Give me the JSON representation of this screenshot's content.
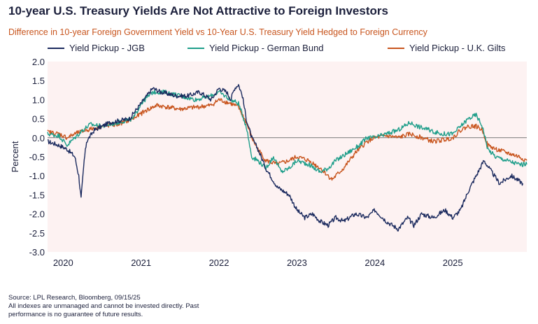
{
  "title": "10-year U.S. Treasury Yields Are Not Attractive to Foreign Investors",
  "subtitle": "Difference in 10-year Foreign Government Yield vs 10-Year U.S. Treasury Yield Hedged to Foreign Currency",
  "footer": {
    "source": "Source: LPL Research, Bloomberg, 09/15/25",
    "disclaimer_1": "All indexes are unmanaged and cannot be invested directly. Past",
    "disclaimer_2": "performance is no guarantee of future results."
  },
  "colors": {
    "jgb": "#1b2a5e",
    "bund": "#1e9e8a",
    "gilts": "#c8551e",
    "plot_bg": "#fdf2f2",
    "zero_line": "#777777"
  },
  "chart_data": {
    "type": "line",
    "title": "Difference in 10-year Foreign Government Yield vs 10-Year U.S. Treasury Yield Hedged to Foreign Currency",
    "ylabel": "Percent",
    "xlabel": "",
    "ylim": [
      -3.0,
      2.0
    ],
    "xlim": [
      2019.8,
      2025.95
    ],
    "y_ticks": [
      "2.0",
      "1.5",
      "1.0",
      "0.5",
      "0.0",
      "-0.5",
      "-1.0",
      "-1.5",
      "-2.0",
      "-2.5",
      "-3.0"
    ],
    "x_ticks": [
      "2020",
      "2021",
      "2022",
      "2023",
      "2024",
      "2025"
    ],
    "grid": false,
    "legend_position": "top",
    "series": [
      {
        "name": "Yield Pickup - JGB",
        "color": "#1b2a5e",
        "x": [
          2019.8,
          2019.95,
          2020.05,
          2020.15,
          2020.2,
          2020.23,
          2020.27,
          2020.3,
          2020.4,
          2020.6,
          2020.85,
          2021.0,
          2021.15,
          2021.25,
          2021.45,
          2021.6,
          2021.75,
          2021.9,
          2022.0,
          2022.1,
          2022.15,
          2022.2,
          2022.25,
          2022.3,
          2022.35,
          2022.42,
          2022.5,
          2022.6,
          2022.75,
          2022.9,
          2023.0,
          2023.1,
          2023.2,
          2023.3,
          2023.4,
          2023.5,
          2023.6,
          2023.75,
          2023.9,
          2024.0,
          2024.15,
          2024.3,
          2024.42,
          2024.5,
          2024.6,
          2024.75,
          2024.9,
          2025.0,
          2025.1,
          2025.2,
          2025.3,
          2025.4,
          2025.5,
          2025.6,
          2025.75,
          2025.9
        ],
        "y": [
          -0.1,
          -0.2,
          -0.3,
          -0.5,
          -1.0,
          -1.6,
          -0.6,
          -0.1,
          0.2,
          0.4,
          0.5,
          0.9,
          1.3,
          1.2,
          1.1,
          1.1,
          1.2,
          1.0,
          1.3,
          1.2,
          1.0,
          1.3,
          1.4,
          1.1,
          0.5,
          0.0,
          -0.3,
          -0.8,
          -1.3,
          -1.5,
          -1.9,
          -2.1,
          -2.0,
          -2.2,
          -2.3,
          -2.1,
          -2.2,
          -2.0,
          -2.1,
          -1.9,
          -2.2,
          -2.4,
          -2.1,
          -2.3,
          -2.0,
          -2.1,
          -1.9,
          -2.1,
          -1.9,
          -1.4,
          -1.0,
          -0.6,
          -0.9,
          -1.2,
          -1.0,
          -1.2
        ]
      },
      {
        "name": "Yield Pickup - German Bund",
        "color": "#1e9e8a",
        "x": [
          2019.8,
          2019.95,
          2020.05,
          2020.15,
          2020.25,
          2020.35,
          2020.5,
          2020.7,
          2020.9,
          2021.0,
          2021.15,
          2021.3,
          2021.5,
          2021.7,
          2021.9,
          2022.0,
          2022.15,
          2022.25,
          2022.35,
          2022.42,
          2022.5,
          2022.6,
          2022.7,
          2022.8,
          2022.9,
          2023.0,
          2023.15,
          2023.3,
          2023.4,
          2023.5,
          2023.65,
          2023.8,
          2023.9,
          2024.0,
          2024.15,
          2024.3,
          2024.45,
          2024.55,
          2024.7,
          2024.85,
          2025.0,
          2025.1,
          2025.2,
          2025.3,
          2025.38,
          2025.45,
          2025.55,
          2025.7,
          2025.85,
          2025.95
        ],
        "y": [
          0.1,
          0.05,
          -0.2,
          0.0,
          0.2,
          0.35,
          0.3,
          0.4,
          0.5,
          0.9,
          1.2,
          1.2,
          1.1,
          1.0,
          1.1,
          1.2,
          1.0,
          0.9,
          0.3,
          -0.5,
          -0.6,
          -0.8,
          -0.5,
          -0.9,
          -0.8,
          -0.6,
          -0.7,
          -0.9,
          -0.8,
          -0.6,
          -0.4,
          -0.2,
          0.0,
          0.0,
          0.1,
          0.2,
          0.4,
          0.3,
          0.2,
          0.1,
          0.1,
          0.3,
          0.5,
          0.6,
          0.3,
          -0.3,
          -0.5,
          -0.6,
          -0.7,
          -0.7
        ]
      },
      {
        "name": "Yield Pickup - U.K. Gilts",
        "color": "#c8551e",
        "x": [
          2019.8,
          2019.95,
          2020.05,
          2020.15,
          2020.3,
          2020.5,
          2020.7,
          2020.9,
          2021.05,
          2021.2,
          2021.35,
          2021.5,
          2021.7,
          2021.9,
          2022.0,
          2022.15,
          2022.25,
          2022.35,
          2022.42,
          2022.5,
          2022.6,
          2022.75,
          2022.9,
          2023.0,
          2023.15,
          2023.3,
          2023.45,
          2023.6,
          2023.75,
          2023.9,
          2024.0,
          2024.15,
          2024.3,
          2024.45,
          2024.6,
          2024.75,
          2024.9,
          2025.0,
          2025.1,
          2025.2,
          2025.3,
          2025.38,
          2025.45,
          2025.55,
          2025.7,
          2025.85,
          2025.95
        ],
        "y": [
          0.15,
          0.1,
          0.0,
          0.1,
          0.2,
          0.3,
          0.35,
          0.5,
          0.7,
          0.85,
          0.8,
          0.75,
          0.8,
          0.85,
          1.0,
          0.9,
          0.8,
          0.4,
          0.0,
          -0.3,
          -0.6,
          -0.7,
          -0.6,
          -0.5,
          -0.6,
          -0.8,
          -1.1,
          -0.8,
          -0.4,
          -0.1,
          0.0,
          0.05,
          0.0,
          0.1,
          0.0,
          -0.1,
          -0.05,
          0.0,
          0.2,
          0.3,
          0.3,
          0.2,
          -0.2,
          -0.3,
          -0.4,
          -0.5,
          -0.6
        ]
      }
    ]
  }
}
